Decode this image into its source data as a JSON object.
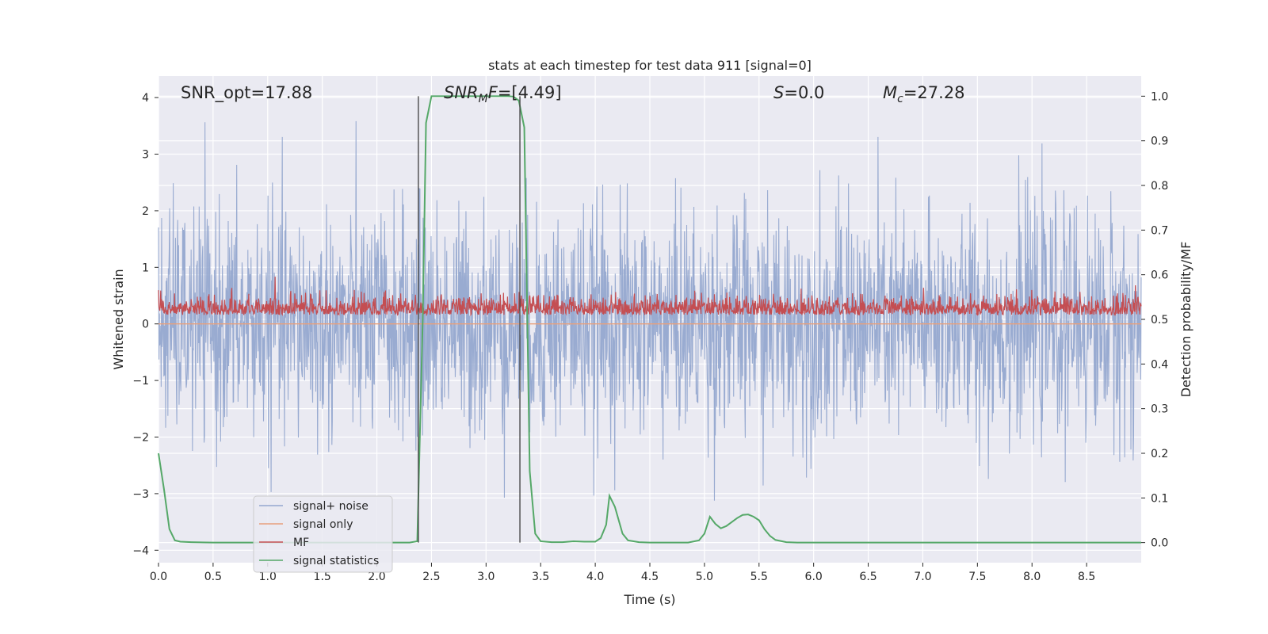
{
  "chart_data": {
    "type": "line",
    "title": "stats at each timestep for test data 911 [signal=0]",
    "xlabel": "Time (s)",
    "ylabel_left": "Whitened strain",
    "ylabel_right": "Detection probability/MF",
    "xlim": [
      0.0,
      9.0
    ],
    "ylim_left": [
      -4.22,
      4.38
    ],
    "ylim_right": [
      -0.045,
      1.045
    ],
    "x_ticks": [
      0.0,
      0.5,
      1.0,
      1.5,
      2.0,
      2.5,
      3.0,
      3.5,
      4.0,
      4.5,
      5.0,
      5.5,
      6.0,
      6.5,
      7.0,
      7.5,
      8.0,
      8.5
    ],
    "x_tick_labels": [
      "0.0",
      "0.5",
      "1.0",
      "1.5",
      "2.0",
      "2.5",
      "3.0",
      "3.5",
      "4.0",
      "4.5",
      "5.0",
      "5.5",
      "6.0",
      "6.5",
      "7.0",
      "7.5",
      "8.0",
      "8.5"
    ],
    "y_left_ticks": [
      -4,
      -3,
      -2,
      -1,
      0,
      1,
      2,
      3,
      4
    ],
    "y_left_tick_labels": [
      "−4",
      "−3",
      "−2",
      "−1",
      "0",
      "1",
      "2",
      "3",
      "4"
    ],
    "y_right_ticks": [
      0.0,
      0.1,
      0.2,
      0.3,
      0.4,
      0.5,
      0.6,
      0.7,
      0.8,
      0.9,
      1.0
    ],
    "y_right_tick_labels": [
      "0.0",
      "0.1",
      "0.2",
      "0.3",
      "0.4",
      "0.5",
      "0.6",
      "0.7",
      "0.8",
      "0.9",
      "1.0"
    ],
    "grid": true,
    "legend_position": "lower-left",
    "annotations": {
      "snr_opt": "SNR_opt=17.88",
      "snr_mf": "=[4.49]",
      "snr_mf_prefix": "SNR",
      "snr_mf_sub": "M",
      "snr_mf_tail": "F",
      "s_value": "=0.0",
      "s_symbol": "S",
      "mc_symbol": "M",
      "mc_sub": "c",
      "mc_value": "=27.28"
    },
    "vlines_x": [
      2.38,
      3.31
    ],
    "series": [
      {
        "name": "signal+ noise",
        "color": "#95a8cf",
        "axis": "left",
        "kind": "noise",
        "amplitude_std": 1.0,
        "x_range": [
          0.0,
          9.0
        ],
        "num_points": 2200
      },
      {
        "name": "signal only",
        "color": "#e8a07c",
        "axis": "left",
        "kind": "flat",
        "value": 0.0
      },
      {
        "name": "MF",
        "color": "#c44e52",
        "axis": "right",
        "kind": "mf_noise",
        "baseline": 0.51,
        "peak_max": 0.61,
        "x_range": [
          0.0,
          9.0
        ],
        "num_points": 2200
      },
      {
        "name": "signal statistics",
        "color": "#55a868",
        "axis": "right",
        "kind": "line",
        "x": [
          0.0,
          0.05,
          0.1,
          0.15,
          0.2,
          0.3,
          0.5,
          1.0,
          1.5,
          2.0,
          2.3,
          2.37,
          2.42,
          2.45,
          2.5,
          2.6,
          2.8,
          3.0,
          3.2,
          3.25,
          3.3,
          3.35,
          3.4,
          3.45,
          3.5,
          3.6,
          3.7,
          3.8,
          3.9,
          4.0,
          4.05,
          4.1,
          4.13,
          4.18,
          4.25,
          4.3,
          4.4,
          4.5,
          4.7,
          4.85,
          4.95,
          5.0,
          5.05,
          5.1,
          5.15,
          5.2,
          5.3,
          5.35,
          5.4,
          5.45,
          5.5,
          5.55,
          5.6,
          5.65,
          5.75,
          5.85,
          6.0,
          7.0,
          8.0,
          9.0
        ],
        "y": [
          0.2,
          0.12,
          0.03,
          0.005,
          0.002,
          0.001,
          0.0,
          0.0,
          0.0,
          0.0,
          0.0,
          0.003,
          0.5,
          0.94,
          1.0,
          1.0,
          1.0,
          1.0,
          1.0,
          0.999,
          0.99,
          0.93,
          0.16,
          0.02,
          0.003,
          0.001,
          0.001,
          0.003,
          0.002,
          0.002,
          0.01,
          0.04,
          0.105,
          0.08,
          0.02,
          0.005,
          0.001,
          0.0,
          0.0,
          0.0,
          0.005,
          0.02,
          0.058,
          0.042,
          0.032,
          0.037,
          0.055,
          0.062,
          0.063,
          0.058,
          0.05,
          0.03,
          0.015,
          0.006,
          0.001,
          0.0,
          0.0,
          0.0,
          0.0,
          0.0
        ]
      }
    ]
  }
}
